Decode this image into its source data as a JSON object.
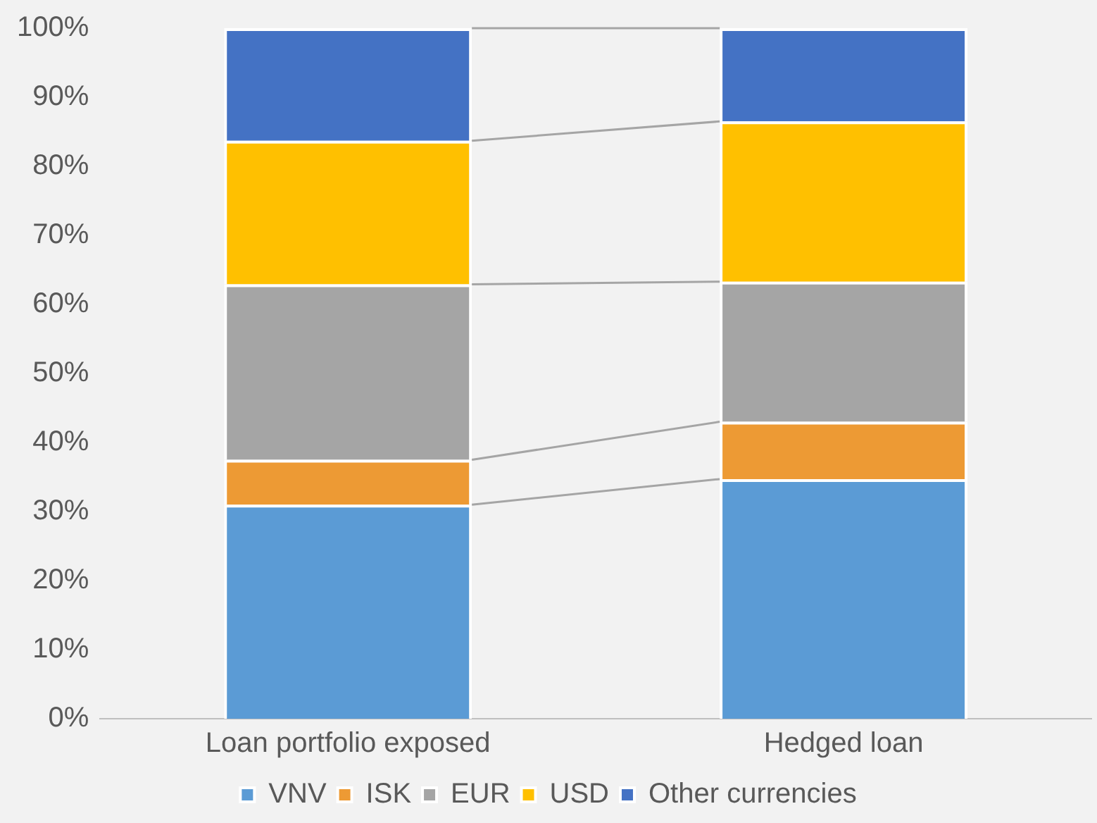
{
  "chart_data": {
    "type": "bar",
    "stacked": true,
    "categories": [
      "Loan portfolio exposed",
      "Hedged loan"
    ],
    "series": [
      {
        "name": "VNV",
        "color": "#5b9bd5",
        "values": [
          31,
          34.7
        ]
      },
      {
        "name": "ISK",
        "color": "#ed9a34",
        "values": [
          6.5,
          8.3
        ]
      },
      {
        "name": "EUR",
        "color": "#a5a5a5",
        "values": [
          25.4,
          20.3
        ]
      },
      {
        "name": "USD",
        "color": "#ffc000",
        "values": [
          20.8,
          23.2
        ]
      },
      {
        "name": "Other currencies",
        "color": "#4472c4",
        "values": [
          16.3,
          13.5
        ]
      }
    ],
    "ylim": [
      0,
      100
    ],
    "yticks": [
      {
        "value": 0,
        "label": "0%"
      },
      {
        "value": 10,
        "label": "10%"
      },
      {
        "value": 20,
        "label": "20%"
      },
      {
        "value": 30,
        "label": "30%"
      },
      {
        "value": 40,
        "label": "40%"
      },
      {
        "value": 50,
        "label": "50%"
      },
      {
        "value": 60,
        "label": "60%"
      },
      {
        "value": 70,
        "label": "70%"
      },
      {
        "value": 80,
        "label": "80%"
      },
      {
        "value": 90,
        "label": "90%"
      },
      {
        "value": 100,
        "label": "100%"
      }
    ],
    "grid": false,
    "legend": "bottom"
  }
}
